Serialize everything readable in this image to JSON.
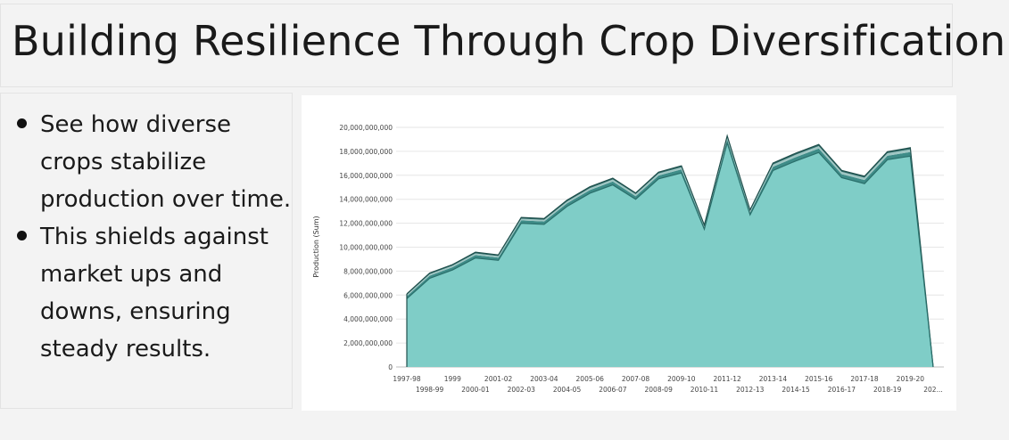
{
  "slide": {
    "title": "Building Resilience Through Crop Diversification",
    "bullets": [
      "See how diverse crops stabilize production over time.",
      "This shields against market ups and downs, ensuring steady results."
    ]
  },
  "chart_data": {
    "type": "area",
    "title": "",
    "xlabel": "",
    "ylabel": "Production (Sum)",
    "ylim": [
      0,
      20000000000
    ],
    "yticks": [
      0,
      2000000000,
      4000000000,
      6000000000,
      8000000000,
      10000000000,
      12000000000,
      14000000000,
      16000000000,
      18000000000,
      20000000000
    ],
    "ytick_labels": [
      "0",
      "2,000,000,000",
      "4,000,000,000",
      "6,000,000,000",
      "8,000,000,000",
      "10,000,000,000",
      "12,000,000,000",
      "14,000,000,000",
      "16,000,000,000",
      "18,000,000,000",
      "20,000,000,000"
    ],
    "grid": true,
    "stacked": true,
    "categories": [
      "1997-98",
      "1998-99",
      "1999",
      "2000-01",
      "2001-02",
      "2002-03",
      "2003-04",
      "2004-05",
      "2005-06",
      "2006-07",
      "2007-08",
      "2008-09",
      "2009-10",
      "2010-11",
      "2011-12",
      "2012-13",
      "2013-14",
      "2014-15",
      "2015-16",
      "2016-17",
      "2017-18",
      "2018-19",
      "2019-20",
      "202..."
    ],
    "series": [
      {
        "color": "#7fcdc7",
        "values": [
          5700000000,
          7400000000,
          8100000000,
          9100000000,
          8900000000,
          12000000000,
          11900000000,
          13400000000,
          14500000000,
          15200000000,
          14000000000,
          15700000000,
          16200000000,
          11500000000,
          18700000000,
          12700000000,
          16400000000,
          17200000000,
          17900000000,
          15800000000,
          15300000000,
          17300000000,
          17600000000,
          0
        ]
      },
      {
        "color": "#3e8c88",
        "values": [
          200000000,
          220000000,
          230000000,
          240000000,
          230000000,
          240000000,
          250000000,
          260000000,
          270000000,
          280000000,
          260000000,
          280000000,
          290000000,
          170000000,
          300000000,
          200000000,
          310000000,
          320000000,
          330000000,
          300000000,
          300000000,
          330000000,
          340000000,
          0
        ]
      },
      {
        "color": "#9fc6c3",
        "values": [
          120000000,
          130000000,
          130000000,
          140000000,
          130000000,
          140000000,
          140000000,
          150000000,
          160000000,
          170000000,
          160000000,
          170000000,
          180000000,
          110000000,
          180000000,
          130000000,
          190000000,
          200000000,
          210000000,
          190000000,
          200000000,
          210000000,
          220000000,
          0
        ]
      },
      {
        "color": "#2e6b68",
        "values": [
          80000000,
          90000000,
          90000000,
          100000000,
          90000000,
          100000000,
          100000000,
          110000000,
          110000000,
          110000000,
          100000000,
          110000000,
          120000000,
          70000000,
          120000000,
          80000000,
          120000000,
          130000000,
          130000000,
          120000000,
          120000000,
          130000000,
          140000000,
          0
        ]
      }
    ]
  }
}
